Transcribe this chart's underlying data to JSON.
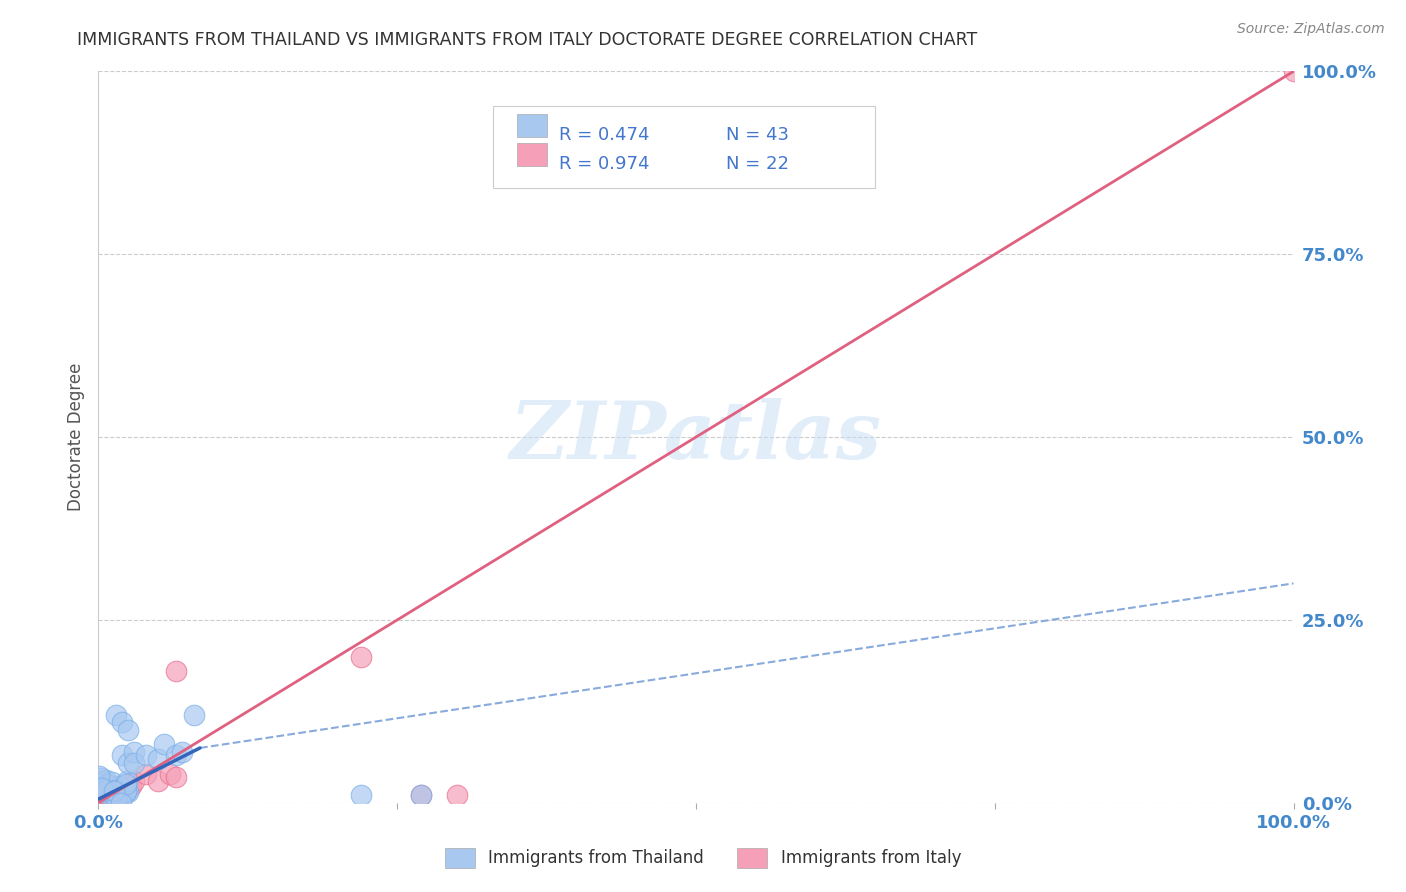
{
  "title": "IMMIGRANTS FROM THAILAND VS IMMIGRANTS FROM ITALY DOCTORATE DEGREE CORRELATION CHART",
  "source": "Source: ZipAtlas.com",
  "ylabel": "Doctorate Degree",
  "xlim": [
    0,
    1.0
  ],
  "ylim": [
    0,
    1.0
  ],
  "watermark": "ZIPatlas",
  "thailand_color": "#a8c8f0",
  "italy_color": "#f5a0b8",
  "thailand_edge": "#7ab0e8",
  "italy_edge": "#e87090",
  "bg_color": "#ffffff",
  "grid_color": "#cccccc",
  "title_color": "#333333",
  "axis_label_color": "#555555",
  "tick_color": "#4488cc",
  "legend_text_color": "#4477cc",
  "legend_r_color": "#333333",
  "thailand_line_color": "#3366bb",
  "italy_line_color": "#e06080",
  "dashed_line_color": "#88aadd",
  "ytick_values": [
    0.0,
    0.25,
    0.5,
    0.75,
    1.0
  ],
  "ytick_labels": [
    "0.0%",
    "25.0%",
    "50.0%",
    "75.0%",
    "100.0%"
  ],
  "xtick_values": [
    0.0,
    0.25,
    0.5,
    0.75,
    1.0
  ],
  "xtick_labels": [
    "0.0%",
    "",
    "",
    "",
    "100.0%"
  ],
  "legend1_r": "R = 0.474",
  "legend1_n": "N = 43",
  "legend2_r": "R = 0.974",
  "legend2_n": "N = 22",
  "bottom_legend1": "Immigrants from Thailand",
  "bottom_legend2": "Immigrants from Italy"
}
